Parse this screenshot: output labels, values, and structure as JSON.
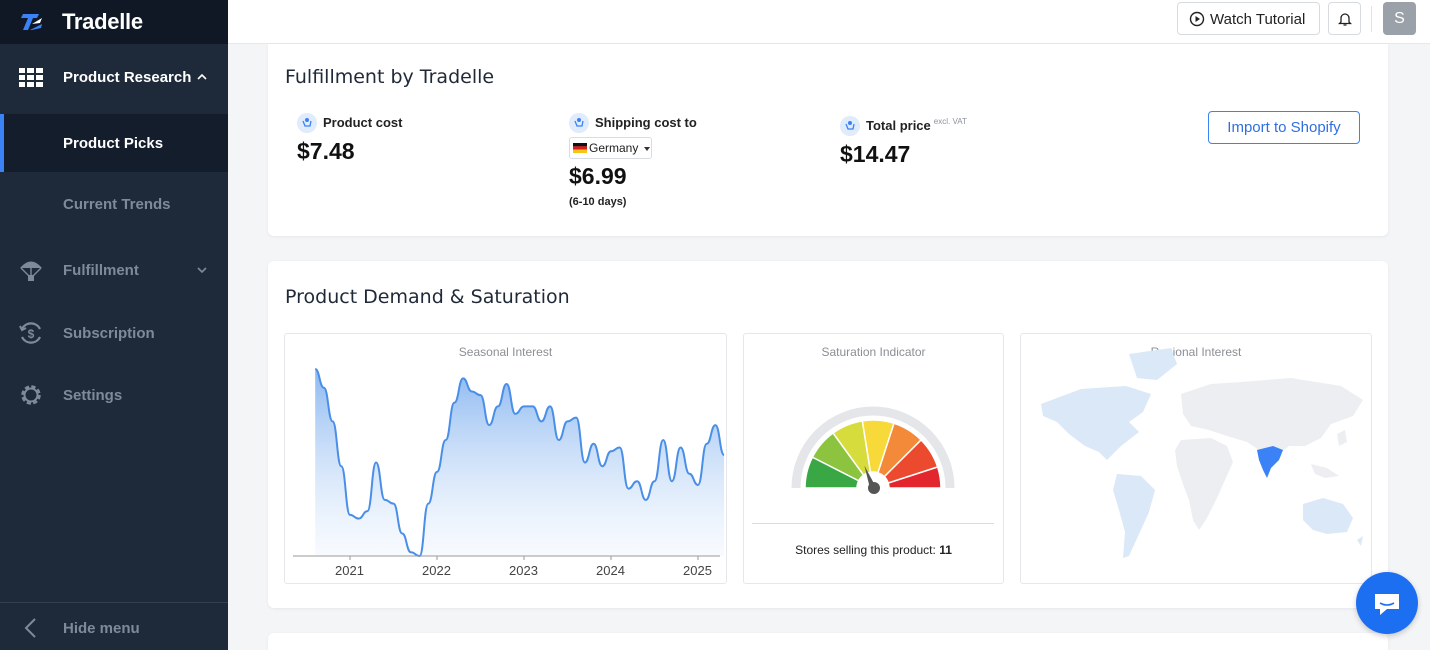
{
  "app": {
    "name": "Tradelle"
  },
  "sidebar": {
    "items": [
      {
        "label": "Product Research",
        "icon": "grid-icon"
      },
      {
        "label": "Product Picks"
      },
      {
        "label": "Current Trends"
      },
      {
        "label": "Fulfillment",
        "icon": "parachute-icon"
      },
      {
        "label": "Subscription",
        "icon": "dollar-cycle-icon"
      },
      {
        "label": "Settings",
        "icon": "gear-icon"
      }
    ],
    "hide_label": "Hide menu"
  },
  "topbar": {
    "tutorial_label": "Watch Tutorial",
    "avatar_initial": "S"
  },
  "fulfillment": {
    "title": "Fulfillment by Tradelle",
    "product_cost_label": "Product cost",
    "product_cost": "$7.48",
    "shipping_label": "Shipping cost to",
    "country": "Germany",
    "shipping_cost": "$6.99",
    "shipping_days": "(6-10 days)",
    "total_label": "Total price",
    "total_suffix": "excl. VAT",
    "total_price": "$14.47",
    "import_label": "Import to Shopify"
  },
  "demand": {
    "title": "Product Demand & Saturation",
    "seasonal_title": "Seasonal Interest",
    "saturation_title": "Saturation Indicator",
    "regional_title": "Regional Interest",
    "stores_label": "Stores selling this product:",
    "stores_count": "11"
  },
  "chart_data": {
    "type": "area",
    "title": "Seasonal Interest",
    "x_ticks": [
      "2021",
      "2022",
      "2023",
      "2024",
      "2025"
    ],
    "x": [
      2020.6,
      2020.7,
      2020.8,
      2020.9,
      2021.0,
      2021.1,
      2021.2,
      2021.3,
      2021.4,
      2021.5,
      2021.6,
      2021.7,
      2021.8,
      2021.9,
      2022.0,
      2022.1,
      2022.2,
      2022.3,
      2022.4,
      2022.5,
      2022.6,
      2022.7,
      2022.8,
      2022.9,
      2023.0,
      2023.1,
      2023.2,
      2023.3,
      2023.4,
      2023.5,
      2023.6,
      2023.7,
      2023.8,
      2023.9,
      2024.0,
      2024.1,
      2024.2,
      2024.3,
      2024.4,
      2024.5,
      2024.6,
      2024.7,
      2024.8,
      2024.9,
      2025.0,
      2025.1,
      2025.2,
      2025.3
    ],
    "y": [
      100,
      90,
      72,
      48,
      22,
      20,
      24,
      50,
      30,
      28,
      12,
      2,
      0,
      28,
      45,
      62,
      82,
      95,
      88,
      86,
      70,
      80,
      92,
      76,
      80,
      80,
      72,
      80,
      62,
      72,
      74,
      50,
      60,
      48,
      56,
      58,
      36,
      40,
      30,
      40,
      62,
      40,
      58,
      44,
      38,
      60,
      70,
      54
    ],
    "ylim": [
      0,
      100
    ],
    "color": "#4a8fe7"
  },
  "saturation": {
    "level": 0.45
  },
  "colors": {
    "sidebar": "#1e2a3a",
    "accent": "#3b82f6",
    "highlight_region": "#3b82f6",
    "map_base": "#dbe8f7"
  }
}
